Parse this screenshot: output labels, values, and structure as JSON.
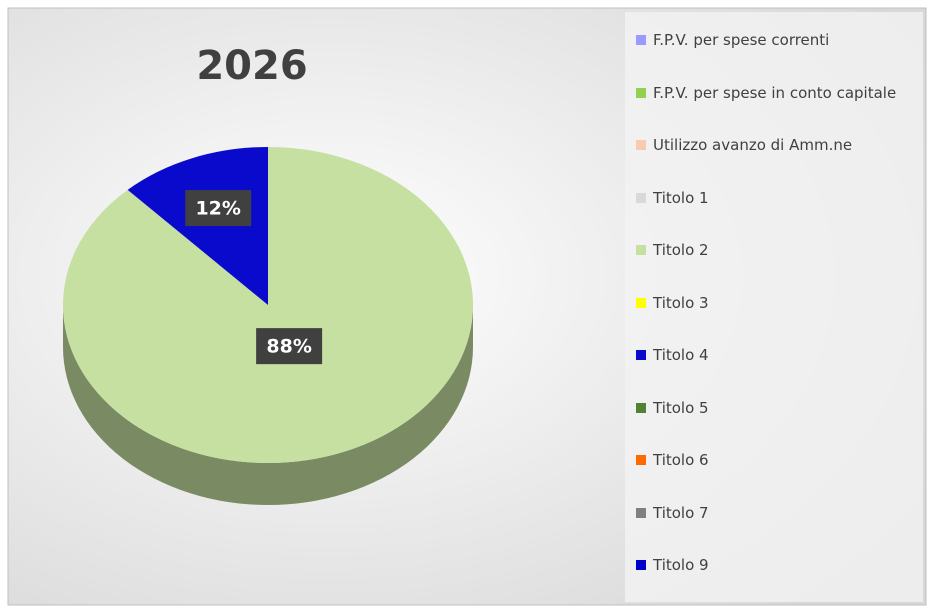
{
  "chart_data": {
    "type": "pie",
    "title": "2026",
    "categories": [
      "F.P.V. per spese correnti",
      "F.P.V. per spese in conto capitale",
      "Utilizzo avanzo di Amm.ne",
      "Titolo 1",
      "Titolo 2",
      "Titolo 3",
      "Titolo 4",
      "Titolo 5",
      "Titolo 6",
      "Titolo 7",
      "Titolo 9"
    ],
    "values": [
      0,
      0,
      0,
      0,
      88,
      0,
      12,
      0,
      0,
      0,
      0
    ],
    "value_labels": [
      null,
      null,
      null,
      null,
      "88%",
      null,
      "12%",
      null,
      null,
      null,
      null
    ],
    "colors": [
      "#9999ff",
      "#92d050",
      "#f8cbad",
      "#d9d9d9",
      "#c5e0a0",
      "#ffff00",
      "#0a0acc",
      "#548235",
      "#ff6a00",
      "#808080",
      "#0000cc"
    ],
    "legend": "right"
  }
}
